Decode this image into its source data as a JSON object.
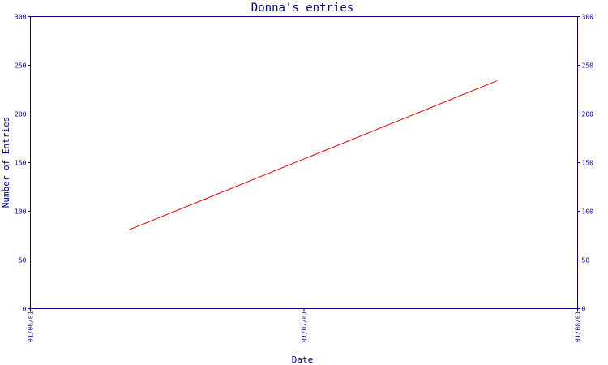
{
  "chart_data": {
    "type": "line",
    "title": "Donna's entries",
    "xlabel": "Date",
    "ylabel": "Number of Entries",
    "x_ticks": [
      "01/06/01",
      "01/07/01",
      "01/08/01"
    ],
    "xlim": [
      "2001-06-01",
      "2001-08-01"
    ],
    "ylim": [
      0,
      300
    ],
    "y_ticks": [
      0,
      50,
      100,
      150,
      200,
      250,
      300
    ],
    "y_tick_labels_both_sides": true,
    "grid": false,
    "series": [
      {
        "color": "#e00000",
        "points": [
          {
            "x": "2001-06-12",
            "y": 81
          },
          {
            "x": "2001-07-23",
            "y": 234
          }
        ]
      }
    ]
  }
}
